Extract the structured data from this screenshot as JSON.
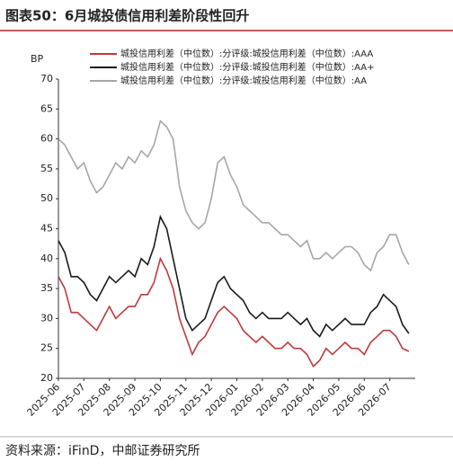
{
  "chart_data": {
    "type": "line",
    "title": "图表50：6月城投债信用利差阶段性回升",
    "y_label": "BP",
    "source": "资料来源：iFinD，中邮证券研究所",
    "categories": [
      "2025-06",
      null,
      null,
      null,
      "2025-07",
      null,
      null,
      null,
      "2025-08",
      null,
      null,
      null,
      "2025-09",
      null,
      null,
      null,
      "2025-10",
      null,
      null,
      null,
      "2025-11",
      null,
      null,
      null,
      "2025-12",
      null,
      null,
      null,
      "2026-01",
      null,
      null,
      null,
      "2026-02",
      null,
      null,
      null,
      "2026-03",
      null,
      null,
      null,
      "2026-04",
      null,
      null,
      null,
      "2026-05",
      null,
      null,
      null,
      "2026-06",
      null,
      null,
      null,
      "2026-07",
      null,
      null,
      null
    ],
    "series": [
      {
        "name": "城投信用利差（中位数）:分评级:城投信用利差（中位数）:AAA",
        "color": "#c0393b",
        "values": [
          37,
          35,
          31,
          31,
          30,
          29,
          28,
          30,
          32,
          30,
          31,
          32,
          32,
          34,
          34,
          36,
          40,
          38,
          35,
          30,
          27,
          24,
          26,
          27,
          29,
          31,
          32,
          31,
          30,
          28,
          27,
          26,
          27,
          26,
          25,
          25,
          26,
          25,
          25,
          24,
          22,
          23,
          25,
          24,
          25,
          26,
          25,
          25,
          24,
          26,
          27,
          28,
          28,
          27,
          25,
          24.5
        ]
      },
      {
        "name": "城投信用利差（中位数）:分评级:城投信用利差（中位数）:AA+",
        "color": "#1a1a1a",
        "values": [
          43,
          41,
          37,
          37,
          36,
          34,
          33,
          35,
          37,
          36,
          37,
          38,
          37,
          40,
          39,
          42,
          47,
          45,
          40,
          35,
          30,
          28,
          29,
          30,
          33,
          36,
          37,
          35,
          34,
          33,
          31,
          30,
          31,
          30,
          30,
          30,
          31,
          30,
          29,
          30,
          28,
          27,
          29,
          28,
          29,
          30,
          29,
          29,
          29,
          31,
          32,
          34,
          33,
          32,
          29,
          27.5
        ]
      },
      {
        "name": "城投信用利差（中位数）:分评级:城投信用利差（中位数）:AA",
        "color": "#a6a6a6",
        "values": [
          60,
          59,
          57,
          55,
          56,
          53,
          51,
          52,
          54,
          56,
          55,
          57,
          56,
          58,
          57,
          59,
          63,
          62,
          60,
          52,
          48,
          46,
          45,
          46,
          50,
          56,
          57,
          54,
          52,
          49,
          48,
          47,
          46,
          46,
          45,
          44,
          44,
          43,
          42,
          43,
          40,
          40,
          41,
          40,
          41,
          42,
          42,
          41,
          39,
          38,
          41,
          42,
          44,
          44,
          41,
          39
        ]
      }
    ],
    "ylim": [
      20,
      70
    ],
    "yticks": [
      20,
      25,
      30,
      35,
      40,
      45,
      50,
      55,
      60,
      65,
      70
    ],
    "grid": false
  }
}
